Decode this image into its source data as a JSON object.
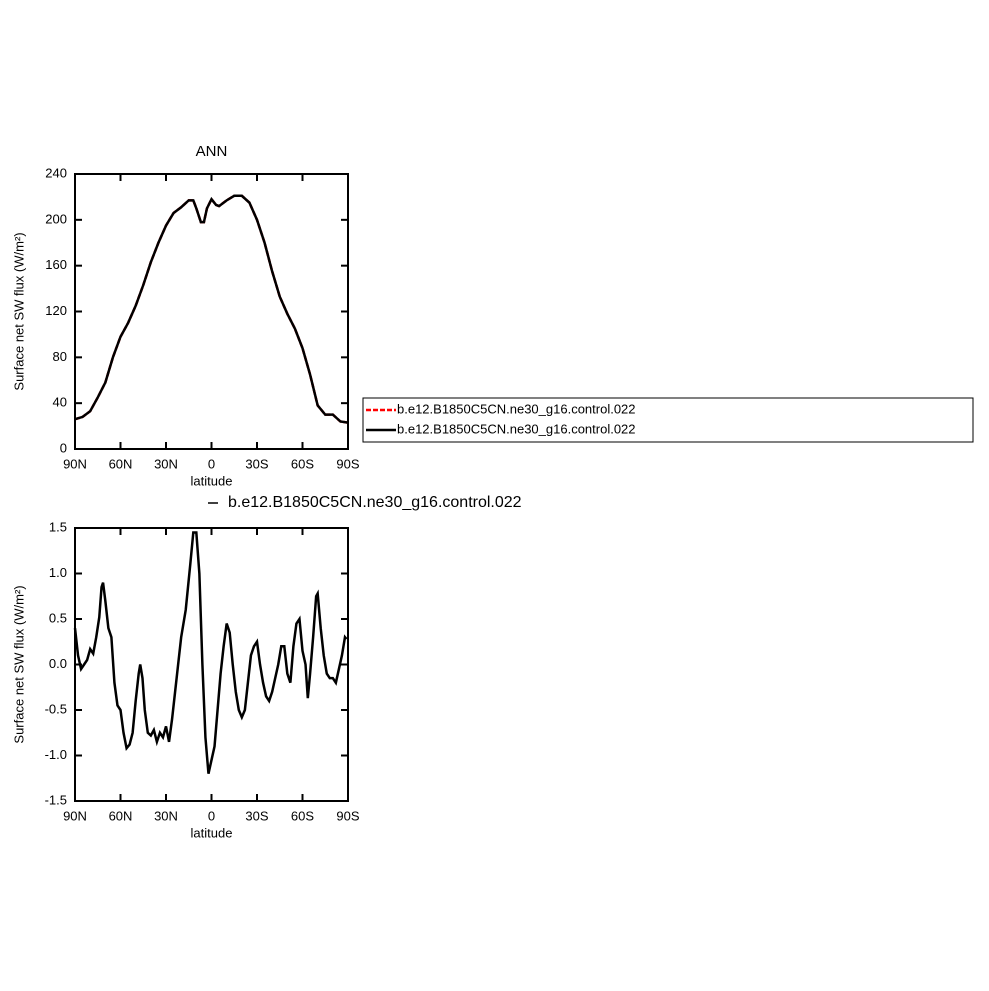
{
  "chart_data": [
    {
      "type": "line",
      "title": "ANN",
      "x_label": "latitude",
      "y_label": "Surface net SW flux (W/m²)",
      "xlim": [
        90,
        -90
      ],
      "ylim": [
        0,
        240
      ],
      "xticks": [
        {
          "value": 90,
          "label": "90N"
        },
        {
          "value": 60,
          "label": "60N"
        },
        {
          "value": 30,
          "label": "30N"
        },
        0,
        {
          "value": -30,
          "label": "30S"
        },
        {
          "value": -60,
          "label": "60S"
        },
        {
          "value": -90,
          "label": "90S"
        }
      ],
      "yticks": [
        0,
        40,
        80,
        120,
        160,
        200,
        240
      ],
      "legend": "right",
      "x": [
        90,
        85,
        80,
        75,
        70,
        65,
        60,
        55,
        50,
        45,
        40,
        35,
        30,
        25,
        20,
        15,
        12,
        10,
        7,
        5,
        3,
        0,
        -3,
        -5,
        -10,
        -15,
        -20,
        -25,
        -30,
        -35,
        -40,
        -45,
        -50,
        -55,
        -60,
        -65,
        -70,
        -75,
        -80,
        -85,
        -90
      ],
      "series": [
        {
          "name": "b.e12.B1850C5CN.ne30_g16.control.022",
          "color": "#ff0000",
          "line_style": "dashed",
          "values": [
            26,
            28,
            33,
            45,
            58,
            80,
            98,
            110,
            125,
            143,
            163,
            180,
            195,
            206,
            211,
            217,
            217,
            210,
            198,
            198,
            210,
            218,
            213,
            212,
            217,
            221,
            221,
            215,
            200,
            180,
            155,
            133,
            118,
            105,
            88,
            65,
            38,
            30,
            30,
            24,
            23
          ]
        },
        {
          "name": "b.e12.B1850C5CN.ne30_g16.control.022",
          "color": "#000000",
          "line_style": "solid",
          "values": [
            26,
            28,
            33,
            45,
            58,
            80,
            98,
            110,
            125,
            143,
            163,
            180,
            195,
            206,
            211,
            217,
            217,
            210,
            198,
            198,
            210,
            218,
            213,
            212,
            217,
            221,
            221,
            215,
            200,
            180,
            155,
            133,
            118,
            105,
            88,
            65,
            38,
            30,
            30,
            24,
            23
          ]
        }
      ]
    },
    {
      "type": "line",
      "x_label": "latitude",
      "y_label": "Surface net SW flux (W/m²)",
      "xlim": [
        90,
        -90
      ],
      "ylim": [
        -1.5,
        1.5
      ],
      "xticks": [
        {
          "value": 90,
          "label": "90N"
        },
        {
          "value": 60,
          "label": "60N"
        },
        {
          "value": 30,
          "label": "30N"
        },
        0,
        {
          "value": -30,
          "label": "30S"
        },
        {
          "value": -60,
          "label": "60S"
        },
        {
          "value": -90,
          "label": "90S"
        }
      ],
      "yticks": [
        -1.5,
        {
          "value": -1,
          "label": "-1.0"
        },
        -0.5,
        {
          "value": 0,
          "label": "0.0"
        },
        0.5,
        {
          "value": 1,
          "label": "1.0"
        },
        1.5
      ],
      "legend": "top",
      "x": [
        90,
        88,
        86,
        84,
        82,
        80,
        78,
        76,
        74,
        72.5,
        71.5,
        70,
        68,
        66,
        64,
        62,
        60,
        58,
        56,
        54,
        52,
        50,
        48,
        47,
        45.5,
        44,
        42,
        40,
        38,
        36,
        34,
        32,
        30,
        28,
        26,
        24,
        22,
        20,
        17,
        14,
        12,
        10,
        8,
        6,
        4,
        2,
        0,
        -2,
        -4,
        -6,
        -8,
        -10,
        -12,
        -14,
        -16,
        -18,
        -20,
        -22,
        -24,
        -26,
        -28,
        -30,
        -32,
        -34,
        -36,
        -38,
        -40,
        -42,
        -44,
        -46,
        -48,
        -50,
        -52,
        -54,
        -56,
        -58,
        -60,
        -62,
        -63.5,
        -65,
        -67,
        -69,
        -70,
        -72,
        -74,
        -76,
        -78,
        -80,
        -82,
        -84,
        -86,
        -88,
        -89
      ],
      "series": [
        {
          "name": "b.e12.B1850C5CN.ne30_g16.control.022",
          "color": "#000000",
          "line_style": "solid",
          "values": [
            0.4,
            0.1,
            -0.05,
            0.0,
            0.05,
            0.17,
            0.12,
            0.3,
            0.52,
            0.85,
            0.9,
            0.7,
            0.4,
            0.3,
            -0.2,
            -0.45,
            -0.5,
            -0.75,
            -0.92,
            -0.88,
            -0.75,
            -0.4,
            -0.1,
            0.0,
            -0.15,
            -0.5,
            -0.75,
            -0.78,
            -0.72,
            -0.85,
            -0.75,
            -0.8,
            -0.68,
            -0.85,
            -0.6,
            -0.3,
            0.0,
            0.3,
            0.6,
            1.1,
            1.45,
            1.45,
            1.0,
            0.0,
            -0.8,
            -1.2,
            -1.05,
            -0.9,
            -0.5,
            -0.1,
            0.2,
            0.45,
            0.35,
            0.0,
            -0.3,
            -0.5,
            -0.58,
            -0.5,
            -0.2,
            0.1,
            0.2,
            0.25,
            0.0,
            -0.2,
            -0.35,
            -0.4,
            -0.3,
            -0.15,
            0.0,
            0.2,
            0.2,
            -0.1,
            -0.2,
            0.2,
            0.45,
            0.5,
            0.15,
            0.0,
            -0.37,
            -0.1,
            0.3,
            0.75,
            0.78,
            0.4,
            0.1,
            -0.1,
            -0.15,
            -0.15,
            -0.2,
            -0.05,
            0.1,
            0.3,
            0.28
          ]
        }
      ]
    }
  ]
}
